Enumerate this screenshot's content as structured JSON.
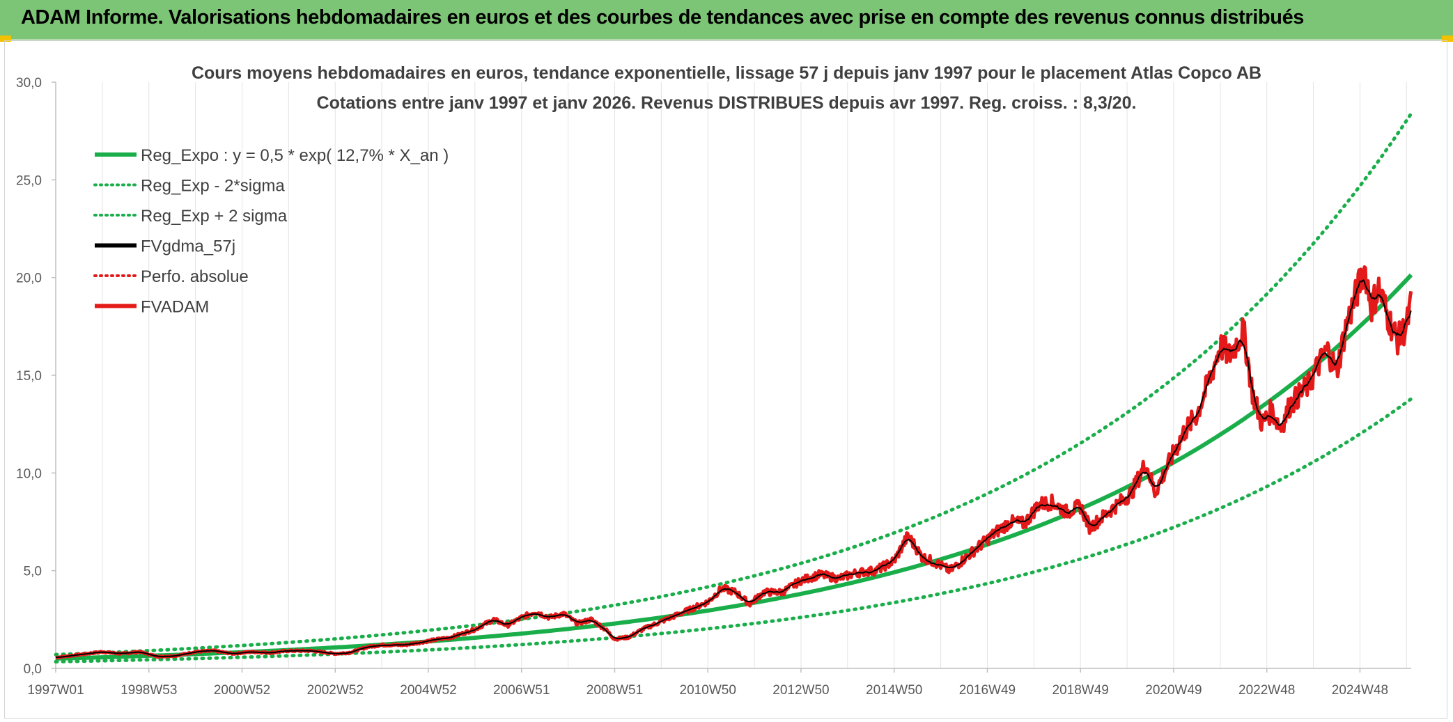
{
  "banner": {
    "text": "ADAM Informe. Valorisations hebdomadaires en euros et des courbes de tendances avec prise en compte des revenus connus distribués"
  },
  "chart_data": {
    "type": "line",
    "title": "Cours moyens hebdomadaires en euros, tendance exponentielle, lissage 57 j depuis janv 1997 pour le placement Atlas Copco AB",
    "subtitle": "Cotations entre janv 1997 et janv 2026. Revenus DISTRIBUES depuis avr 1997. Reg. croiss. : 8,3/20.",
    "xlabel": "",
    "ylabel": "",
    "x_range": [
      1997.0,
      2026.1
    ],
    "ylim": [
      0,
      30
    ],
    "y_ticks": [
      "0,0",
      "5,0",
      "10,0",
      "15,0",
      "20,0",
      "25,0",
      "30,0"
    ],
    "x_ticks": [
      {
        "label": "1997W01",
        "year": 1997.0
      },
      {
        "label": "1998W53",
        "year": 1999.0
      },
      {
        "label": "2000W52",
        "year": 2001.0
      },
      {
        "label": "2002W52",
        "year": 2003.0
      },
      {
        "label": "2004W52",
        "year": 2005.0
      },
      {
        "label": "2006W51",
        "year": 2007.0
      },
      {
        "label": "2008W51",
        "year": 2009.0
      },
      {
        "label": "2010W50",
        "year": 2011.0
      },
      {
        "label": "2012W50",
        "year": 2013.0
      },
      {
        "label": "2014W50",
        "year": 2015.0
      },
      {
        "label": "2016W49",
        "year": 2017.0
      },
      {
        "label": "2018W49",
        "year": 2019.0
      },
      {
        "label": "2020W49",
        "year": 2021.0
      },
      {
        "label": "2022W48",
        "year": 2023.0
      },
      {
        "label": "2024W48",
        "year": 2025.0
      }
    ],
    "grid": "vertical",
    "legend_position": "top-left",
    "regression": {
      "a": 0.5,
      "rate": 0.127,
      "two_sigma_factor_low": 0.685,
      "two_sigma_factor_high": 1.41
    },
    "series": [
      {
        "name": "Reg_Expo : y = 0,5 * exp( 12,7% *  X_an )",
        "kind": "reg",
        "color": "#1aae4b",
        "style": "solid"
      },
      {
        "name": "Reg_Exp - 2*sigma",
        "kind": "low",
        "color": "#1aae4b",
        "style": "dotted"
      },
      {
        "name": "Reg_Exp + 2 sigma",
        "kind": "high",
        "color": "#1aae4b",
        "style": "dotted"
      },
      {
        "name": "FVgdma_57j",
        "kind": "smooth",
        "color": "#000000",
        "style": "solid"
      },
      {
        "name": "Perfo. absolue",
        "kind": "perf",
        "color": "#e41a1a",
        "style": "dotted"
      },
      {
        "name": "FVADAM",
        "kind": "price",
        "color": "#e41a1a",
        "style": "solid"
      }
    ],
    "price_points": [
      [
        1997.0,
        0.55
      ],
      [
        1997.5,
        0.7
      ],
      [
        1998.0,
        0.85
      ],
      [
        1998.4,
        0.75
      ],
      [
        1998.8,
        0.85
      ],
      [
        1999.2,
        0.6
      ],
      [
        1999.6,
        0.65
      ],
      [
        2000.0,
        0.85
      ],
      [
        2000.4,
        0.9
      ],
      [
        2000.8,
        0.75
      ],
      [
        2001.2,
        0.85
      ],
      [
        2001.6,
        0.8
      ],
      [
        2002.0,
        0.9
      ],
      [
        2002.5,
        0.9
      ],
      [
        2003.0,
        0.75
      ],
      [
        2003.3,
        0.8
      ],
      [
        2003.7,
        1.1
      ],
      [
        2004.0,
        1.2
      ],
      [
        2004.5,
        1.2
      ],
      [
        2005.0,
        1.4
      ],
      [
        2005.5,
        1.6
      ],
      [
        2006.0,
        2.0
      ],
      [
        2006.4,
        2.5
      ],
      [
        2006.7,
        2.2
      ],
      [
        2007.0,
        2.6
      ],
      [
        2007.3,
        2.9
      ],
      [
        2007.6,
        2.6
      ],
      [
        2007.9,
        2.8
      ],
      [
        2008.2,
        2.3
      ],
      [
        2008.5,
        2.5
      ],
      [
        2008.8,
        2.0
      ],
      [
        2009.0,
        1.5
      ],
      [
        2009.3,
        1.6
      ],
      [
        2009.6,
        2.0
      ],
      [
        2010.0,
        2.4
      ],
      [
        2010.5,
        2.9
      ],
      [
        2011.0,
        3.4
      ],
      [
        2011.3,
        4.1
      ],
      [
        2011.6,
        3.9
      ],
      [
        2011.9,
        3.3
      ],
      [
        2012.2,
        3.9
      ],
      [
        2012.6,
        3.9
      ],
      [
        2013.0,
        4.5
      ],
      [
        2013.4,
        4.8
      ],
      [
        2013.8,
        4.6
      ],
      [
        2014.2,
        4.9
      ],
      [
        2014.6,
        5.0
      ],
      [
        2015.0,
        5.5
      ],
      [
        2015.3,
        6.8
      ],
      [
        2015.6,
        5.7
      ],
      [
        2015.9,
        5.4
      ],
      [
        2016.2,
        5.0
      ],
      [
        2016.5,
        5.6
      ],
      [
        2016.8,
        6.2
      ],
      [
        2017.2,
        7.0
      ],
      [
        2017.5,
        7.5
      ],
      [
        2017.8,
        7.4
      ],
      [
        2018.1,
        8.4
      ],
      [
        2018.4,
        8.5
      ],
      [
        2018.7,
        8.0
      ],
      [
        2019.0,
        8.3
      ],
      [
        2019.2,
        7.2
      ],
      [
        2019.5,
        7.8
      ],
      [
        2019.8,
        8.4
      ],
      [
        2020.1,
        9.0
      ],
      [
        2020.4,
        10.5
      ],
      [
        2020.6,
        9.0
      ],
      [
        2020.9,
        10.5
      ],
      [
        2021.2,
        12.0
      ],
      [
        2021.5,
        13.0
      ],
      [
        2021.8,
        15.0
      ],
      [
        2022.0,
        16.5
      ],
      [
        2022.2,
        16.0
      ],
      [
        2022.5,
        17.3
      ],
      [
        2022.7,
        14.0
      ],
      [
        2022.9,
        12.5
      ],
      [
        2023.1,
        13.2
      ],
      [
        2023.3,
        12.3
      ],
      [
        2023.5,
        13.5
      ],
      [
        2023.7,
        14.0
      ],
      [
        2023.9,
        14.5
      ],
      [
        2024.1,
        15.5
      ],
      [
        2024.3,
        16.3
      ],
      [
        2024.5,
        15.2
      ],
      [
        2024.7,
        17.5
      ],
      [
        2024.9,
        19.0
      ],
      [
        2025.1,
        20.5
      ],
      [
        2025.25,
        18.5
      ],
      [
        2025.4,
        19.5
      ],
      [
        2025.6,
        18.0
      ],
      [
        2025.8,
        16.8
      ],
      [
        2026.0,
        17.5
      ],
      [
        2026.1,
        18.7
      ]
    ]
  }
}
